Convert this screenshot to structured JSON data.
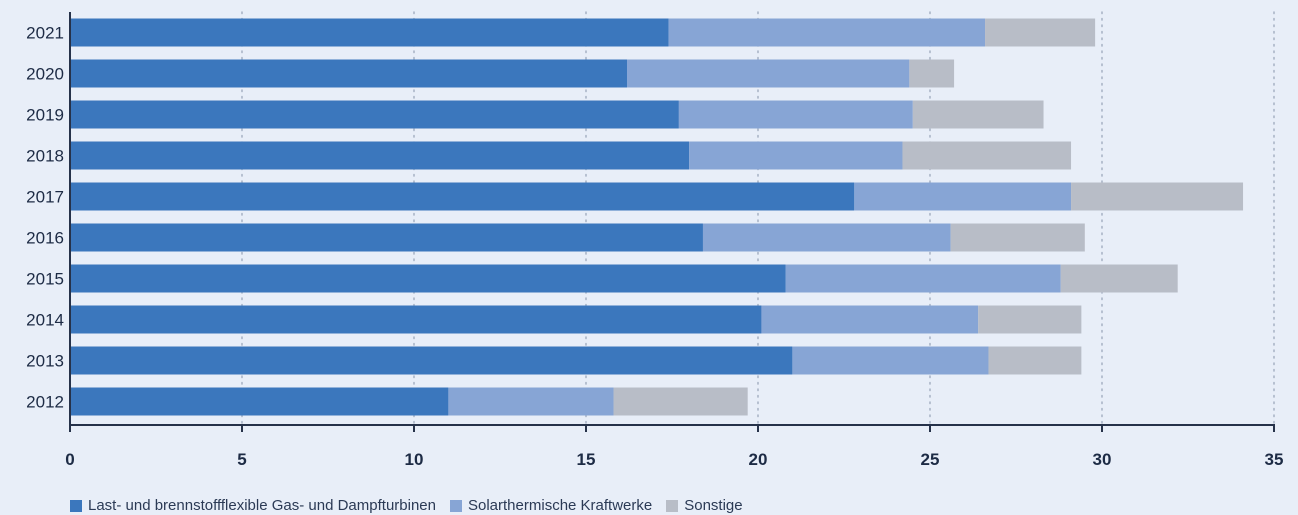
{
  "chart_data": {
    "type": "bar",
    "orientation": "horizontal",
    "stacked": true,
    "categories": [
      "2021",
      "2020",
      "2019",
      "2018",
      "2017",
      "2016",
      "2015",
      "2014",
      "2013",
      "2012"
    ],
    "series": [
      {
        "name": "Last- und brennstoffflexible Gas- und Dampfturbinen",
        "color": "#3b77bd",
        "values": [
          17.4,
          16.2,
          17.7,
          18.0,
          22.8,
          18.4,
          20.8,
          20.1,
          21.0,
          11.0
        ]
      },
      {
        "name": "Solarthermische Kraftwerke",
        "color": "#87a5d5",
        "values": [
          9.2,
          8.2,
          6.8,
          6.2,
          6.3,
          7.2,
          8.0,
          6.3,
          5.7,
          4.8
        ]
      },
      {
        "name": "Sonstige",
        "color": "#b8bdc7",
        "values": [
          3.2,
          1.3,
          3.8,
          4.9,
          5.0,
          3.9,
          3.4,
          3.0,
          2.7,
          3.9
        ]
      }
    ],
    "x_ticks": [
      "0",
      "5",
      "10",
      "15",
      "20",
      "25",
      "30",
      "35"
    ],
    "xlim": [
      0,
      35
    ],
    "grid": "vertical-dotted",
    "legend_position": "bottom-left",
    "title": "",
    "xlabel": "",
    "ylabel": ""
  }
}
